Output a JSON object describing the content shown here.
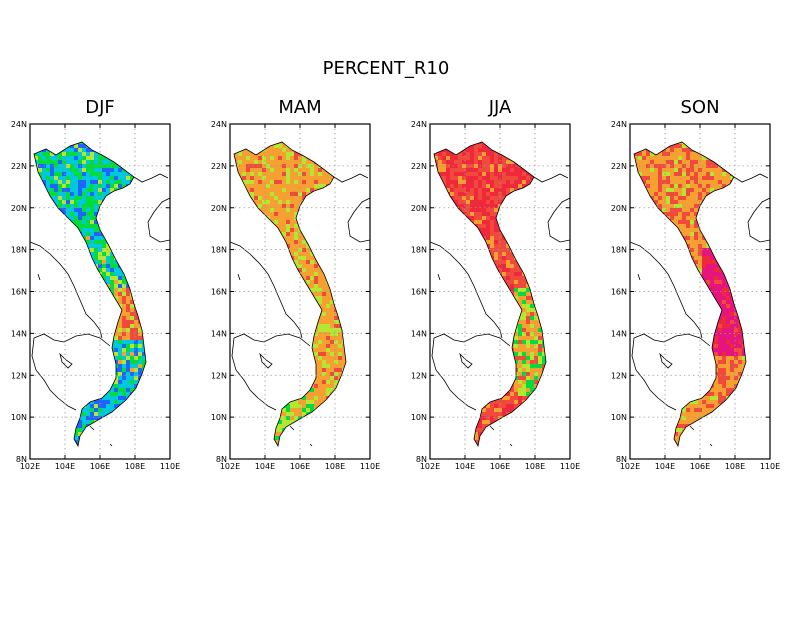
{
  "title": "PERCENT_R10",
  "panels": [
    {
      "season": "DJF",
      "scheme": "cool"
    },
    {
      "season": "MAM",
      "scheme": "warm"
    },
    {
      "season": "JJA",
      "scheme": "hot"
    },
    {
      "season": "SON",
      "scheme": "magenta"
    }
  ],
  "axes": {
    "lon_ticks": [
      "102E",
      "104E",
      "106E",
      "108E",
      "110E"
    ],
    "lat_ticks": [
      "8N",
      "10N",
      "12N",
      "14N",
      "16N",
      "18N",
      "20N",
      "22N",
      "24N"
    ],
    "lon_range": [
      102,
      110
    ],
    "lat_range": [
      8,
      24
    ],
    "grid": "dotted"
  },
  "colors": {
    "blue": "#1e64ff",
    "cyan": "#00c8dc",
    "green": "#00dc3c",
    "yellowgreen": "#b4e632",
    "orange": "#f5a030",
    "red": "#f04a3c",
    "deepred": "#f0283c",
    "magenta": "#e6147d"
  }
}
